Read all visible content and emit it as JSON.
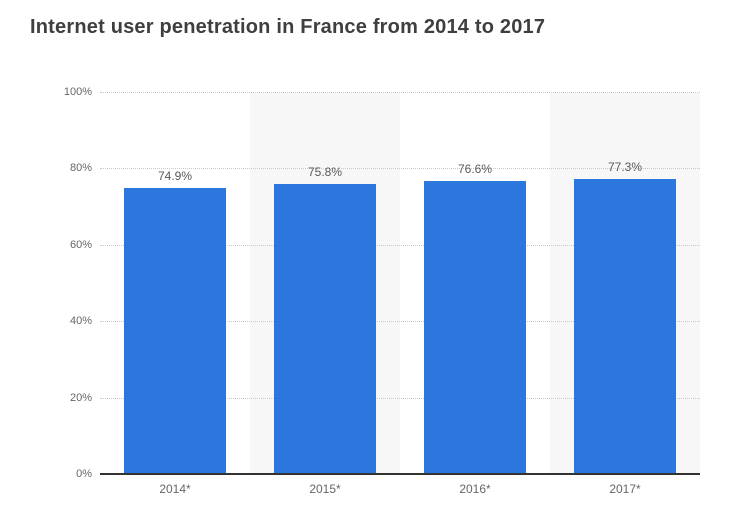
{
  "title": "Internet user penetration in France from 2014 to 2017",
  "colors": {
    "bar": "#2b77de",
    "plot_band": "#f7f7f7",
    "gridline": "#c9c9c9",
    "axis_line": "#333333",
    "title_text": "#3f3f3f",
    "axis_text": "#666666",
    "value_text": "#595959",
    "background": "#ffffff"
  },
  "chart_data": {
    "type": "bar",
    "title": "Internet user penetration in France from 2014 to 2017",
    "categories": [
      "2014*",
      "2015*",
      "2016*",
      "2017*"
    ],
    "values": [
      74.9,
      75.8,
      76.6,
      77.3
    ],
    "value_labels": [
      "74.9%",
      "75.8%",
      "76.6%",
      "77.3%"
    ],
    "xlabel": "",
    "ylabel": "",
    "ylim": [
      0,
      100
    ],
    "yticks": [
      0,
      20,
      40,
      60,
      80,
      100
    ],
    "ytick_labels": [
      "0%",
      "20%",
      "40%",
      "60%",
      "80%",
      "100%"
    ],
    "grid": "horizontal dotted",
    "legend": "none",
    "plot_bands": "alternating vertical column shading behind 2015* and 2017*"
  }
}
